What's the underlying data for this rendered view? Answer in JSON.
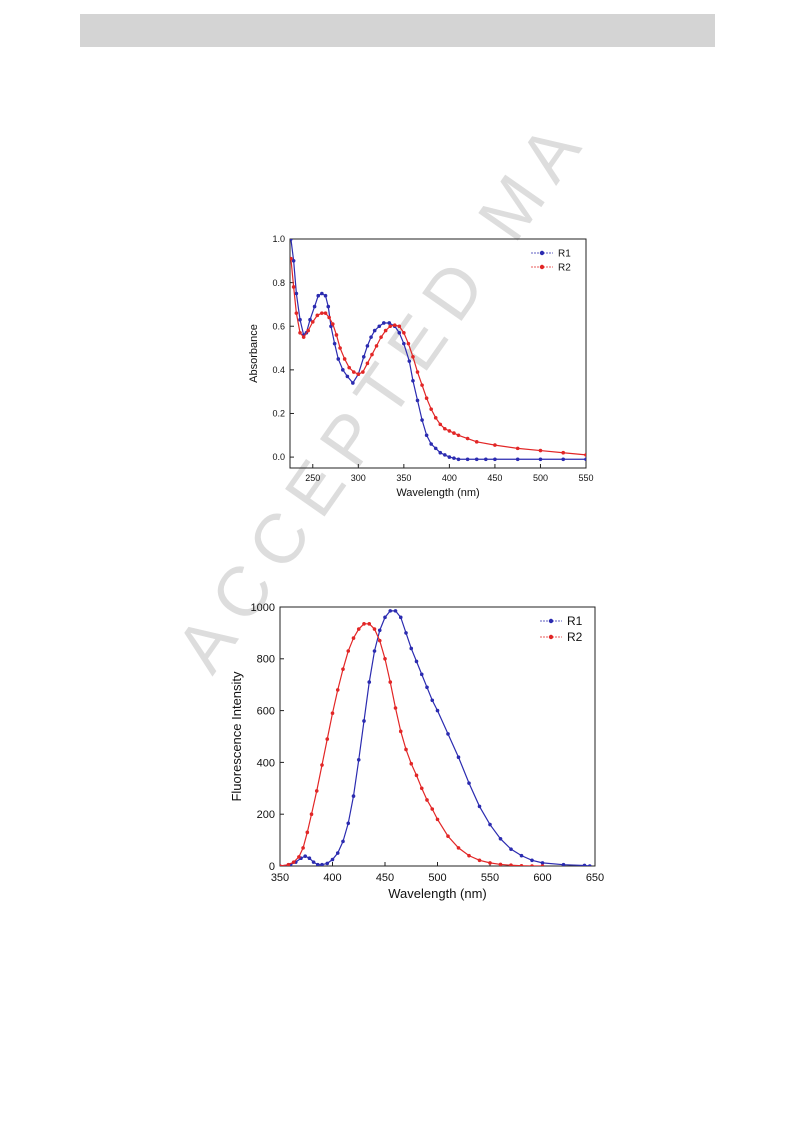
{
  "watermark": "ACCEPTED MA",
  "chart_data": [
    {
      "type": "scatter",
      "xlabel": "Wavelength (nm)",
      "ylabel": "Absorbance",
      "xlim": [
        225,
        550
      ],
      "ylim": [
        -0.05,
        1.0
      ],
      "xticks": [
        250,
        300,
        350,
        400,
        450,
        500,
        550
      ],
      "yticks": [
        0.0,
        0.2,
        0.4,
        0.6,
        0.8,
        1.0
      ],
      "ytick_labels": [
        "0.0",
        "0.2",
        "0.4",
        "0.6",
        "0.8",
        "1.0"
      ],
      "legend_position": "top-right",
      "series": [
        {
          "name": "R1",
          "color": "#2b2bb0",
          "x": [
            226,
            229,
            232,
            236,
            240,
            243,
            247,
            252,
            256,
            260,
            264,
            267,
            270,
            274,
            278,
            283,
            288,
            294,
            300,
            306,
            310,
            314,
            318,
            323,
            328,
            334,
            340,
            345,
            350,
            356,
            360,
            365,
            370,
            375,
            380,
            385,
            390,
            395,
            400,
            405,
            410,
            420,
            430,
            440,
            450,
            475,
            500,
            525,
            550
          ],
          "y": [
            1.0,
            0.9,
            0.75,
            0.63,
            0.56,
            0.57,
            0.63,
            0.69,
            0.74,
            0.75,
            0.74,
            0.69,
            0.6,
            0.52,
            0.45,
            0.4,
            0.37,
            0.34,
            0.38,
            0.46,
            0.51,
            0.55,
            0.58,
            0.6,
            0.615,
            0.615,
            0.6,
            0.57,
            0.52,
            0.44,
            0.35,
            0.26,
            0.17,
            0.1,
            0.06,
            0.04,
            0.02,
            0.01,
            0.0,
            -0.005,
            -0.01,
            -0.01,
            -0.01,
            -0.01,
            -0.01,
            -0.01,
            -0.01,
            -0.01,
            -0.01
          ]
        },
        {
          "name": "R2",
          "color": "#e22626",
          "x": [
            226,
            229,
            232,
            236,
            240,
            245,
            250,
            255,
            260,
            264,
            268,
            272,
            276,
            280,
            285,
            290,
            295,
            300,
            305,
            310,
            315,
            320,
            325,
            330,
            335,
            340,
            345,
            350,
            355,
            360,
            365,
            370,
            375,
            380,
            385,
            390,
            395,
            400,
            405,
            410,
            420,
            430,
            450,
            475,
            500,
            525,
            550
          ],
          "y": [
            0.91,
            0.78,
            0.66,
            0.57,
            0.55,
            0.58,
            0.62,
            0.65,
            0.66,
            0.66,
            0.64,
            0.61,
            0.56,
            0.5,
            0.45,
            0.41,
            0.39,
            0.38,
            0.39,
            0.43,
            0.47,
            0.51,
            0.55,
            0.58,
            0.6,
            0.605,
            0.6,
            0.57,
            0.52,
            0.46,
            0.39,
            0.33,
            0.27,
            0.22,
            0.18,
            0.15,
            0.13,
            0.12,
            0.11,
            0.1,
            0.085,
            0.07,
            0.055,
            0.04,
            0.03,
            0.02,
            0.01
          ]
        }
      ]
    },
    {
      "type": "scatter",
      "xlabel": "Wavelength (nm)",
      "ylabel": "Fluorescence Intensity",
      "xlim": [
        350,
        650
      ],
      "ylim": [
        0,
        1000
      ],
      "xticks": [
        350,
        400,
        450,
        500,
        550,
        600,
        650
      ],
      "yticks": [
        0,
        200,
        400,
        600,
        800,
        1000
      ],
      "ytick_labels": [
        "0",
        "200",
        "400",
        "600",
        "800",
        "1000"
      ],
      "legend_position": "top-right",
      "series": [
        {
          "name": "R1",
          "color": "#2b2bb0",
          "x": [
            350,
            360,
            365,
            370,
            374,
            378,
            382,
            386,
            390,
            395,
            400,
            405,
            410,
            415,
            420,
            425,
            430,
            435,
            440,
            445,
            450,
            455,
            460,
            465,
            470,
            475,
            480,
            485,
            490,
            495,
            500,
            510,
            520,
            530,
            540,
            550,
            560,
            570,
            580,
            590,
            600,
            620,
            640,
            645
          ],
          "y": [
            0,
            5,
            15,
            30,
            38,
            30,
            15,
            5,
            5,
            10,
            25,
            50,
            95,
            165,
            270,
            410,
            560,
            710,
            830,
            910,
            960,
            985,
            985,
            960,
            900,
            840,
            790,
            740,
            690,
            640,
            600,
            510,
            420,
            320,
            230,
            160,
            105,
            65,
            40,
            22,
            12,
            5,
            2,
            0
          ]
        },
        {
          "name": "R2",
          "color": "#e22626",
          "x": [
            350,
            358,
            363,
            368,
            372,
            376,
            380,
            385,
            390,
            395,
            400,
            405,
            410,
            415,
            420,
            425,
            430,
            435,
            440,
            445,
            450,
            455,
            460,
            465,
            470,
            475,
            480,
            485,
            490,
            495,
            500,
            510,
            520,
            530,
            540,
            550,
            560,
            570,
            580,
            590,
            600
          ],
          "y": [
            0,
            5,
            15,
            35,
            70,
            130,
            200,
            290,
            390,
            490,
            590,
            680,
            760,
            830,
            880,
            915,
            935,
            935,
            915,
            870,
            800,
            710,
            610,
            520,
            450,
            395,
            350,
            300,
            255,
            220,
            180,
            115,
            70,
            40,
            22,
            12,
            6,
            3,
            1,
            0,
            0
          ]
        }
      ]
    }
  ]
}
